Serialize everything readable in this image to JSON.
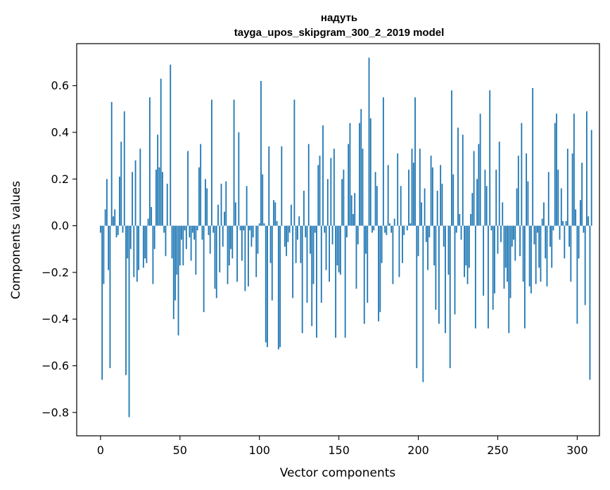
{
  "chart_data": {
    "type": "bar",
    "title": "надуть",
    "subtitle": "tayga_upos_skipgram_300_2_2019 model",
    "xlabel": "Vector components",
    "ylabel": "Components values",
    "xlim": [
      -15,
      314
    ],
    "ylim": [
      -0.9,
      0.78
    ],
    "x_ticks": [
      0,
      50,
      100,
      150,
      200,
      250,
      300
    ],
    "x_tick_labels": [
      "0",
      "50",
      "100",
      "150",
      "200",
      "250",
      "300"
    ],
    "y_ticks": [
      -0.8,
      -0.6,
      -0.4,
      -0.2,
      0.0,
      0.2,
      0.4,
      0.6
    ],
    "y_tick_labels": [
      "−0.8",
      "−0.6",
      "−0.4",
      "−0.2",
      "0.0",
      "0.2",
      "0.4",
      "0.6"
    ],
    "grid": false,
    "bar_color": "#1f77b4",
    "values": [
      -0.03,
      -0.66,
      -0.25,
      0.07,
      0.2,
      -0.19,
      -0.61,
      0.53,
      0.04,
      0.07,
      -0.05,
      -0.04,
      0.21,
      0.36,
      -0.03,
      0.49,
      -0.64,
      -0.14,
      -0.82,
      -0.1,
      0.23,
      -0.22,
      0.28,
      -0.24,
      -0.19,
      0.33,
      0.0,
      -0.18,
      -0.14,
      -0.16,
      0.03,
      0.55,
      0.08,
      -0.25,
      -0.1,
      0.24,
      0.39,
      0.25,
      0.63,
      0.23,
      -0.03,
      -0.13,
      0.18,
      0.0,
      0.69,
      -0.14,
      -0.4,
      -0.32,
      -0.21,
      -0.47,
      -0.17,
      -0.06,
      -0.17,
      -0.02,
      -0.1,
      0.32,
      -0.05,
      -0.15,
      -0.03,
      -0.06,
      -0.21,
      -0.02,
      0.25,
      0.35,
      -0.06,
      -0.37,
      0.2,
      0.16,
      -0.04,
      -0.12,
      0.54,
      -0.03,
      -0.27,
      -0.31,
      0.09,
      -0.2,
      0.18,
      -0.09,
      0.06,
      0.19,
      -0.25,
      -0.17,
      -0.1,
      -0.14,
      0.54,
      0.1,
      -0.24,
      0.4,
      -0.02,
      -0.15,
      -0.02,
      -0.28,
      0.17,
      -0.26,
      -0.02,
      -0.09,
      -0.05,
      0.0,
      -0.22,
      -0.12,
      0.01,
      0.62,
      0.22,
      0.01,
      -0.5,
      -0.52,
      0.34,
      -0.16,
      -0.32,
      0.11,
      0.1,
      0.02,
      -0.53,
      -0.52,
      0.34,
      0.0,
      -0.09,
      -0.13,
      -0.07,
      -0.03,
      0.09,
      -0.31,
      0.54,
      -0.16,
      -0.06,
      0.04,
      -0.16,
      -0.46,
      0.15,
      -0.05,
      -0.33,
      0.35,
      -0.12,
      -0.43,
      -0.25,
      -0.03,
      -0.48,
      0.26,
      0.3,
      -0.33,
      0.43,
      -0.03,
      -0.19,
      0.2,
      -0.24,
      0.29,
      -0.08,
      0.33,
      -0.48,
      -0.17,
      -0.2,
      -0.21,
      0.2,
      0.24,
      -0.48,
      -0.05,
      0.35,
      0.44,
      0.13,
      0.05,
      0.14,
      -0.27,
      -0.08,
      0.44,
      0.5,
      0.33,
      -0.42,
      -0.12,
      -0.33,
      0.72,
      0.46,
      -0.03,
      -0.02,
      0.23,
      0.17,
      -0.41,
      -0.37,
      -0.16,
      0.55,
      -0.03,
      -0.04,
      0.26,
      0.01,
      -0.03,
      -0.25,
      0.03,
      0.0,
      0.31,
      -0.22,
      0.17,
      -0.16,
      -0.04,
      0.0,
      -0.02,
      0.24,
      0.01,
      0.33,
      0.27,
      0.55,
      -0.61,
      -0.13,
      0.33,
      0.1,
      -0.67,
      0.16,
      -0.07,
      -0.19,
      -0.05,
      0.3,
      0.25,
      -0.17,
      -0.36,
      0.15,
      -0.42,
      0.26,
      0.18,
      -0.09,
      -0.46,
      0.0,
      -0.21,
      -0.61,
      0.58,
      0.22,
      -0.38,
      -0.03,
      0.42,
      0.05,
      -0.06,
      0.39,
      -0.22,
      -0.17,
      -0.25,
      -0.18,
      0.05,
      0.14,
      0.32,
      -0.44,
      0.2,
      0.35,
      0.48,
      0.0,
      -0.3,
      0.24,
      0.17,
      -0.44,
      0.58,
      -0.02,
      -0.36,
      -0.29,
      0.24,
      -0.12,
      0.36,
      -0.07,
      0.1,
      -0.27,
      -0.18,
      -0.24,
      -0.46,
      -0.31,
      -0.09,
      -0.06,
      -0.15,
      0.16,
      0.3,
      -0.13,
      0.44,
      -0.24,
      -0.44,
      0.31,
      0.19,
      -0.26,
      -0.29,
      0.59,
      -0.08,
      -0.25,
      -0.03,
      -0.18,
      -0.24,
      0.03,
      0.1,
      -0.14,
      -0.26,
      0.23,
      -0.09,
      -0.18,
      -0.02,
      0.44,
      0.48,
      0.24,
      -0.06,
      0.16,
      0.02,
      -0.14,
      0.02,
      0.33,
      -0.09,
      -0.24,
      0.31,
      0.48,
      0.07,
      -0.42,
      -0.14,
      0.11,
      0.27,
      -0.03,
      -0.34,
      0.49,
      0.04,
      -0.66,
      0.41
    ]
  }
}
